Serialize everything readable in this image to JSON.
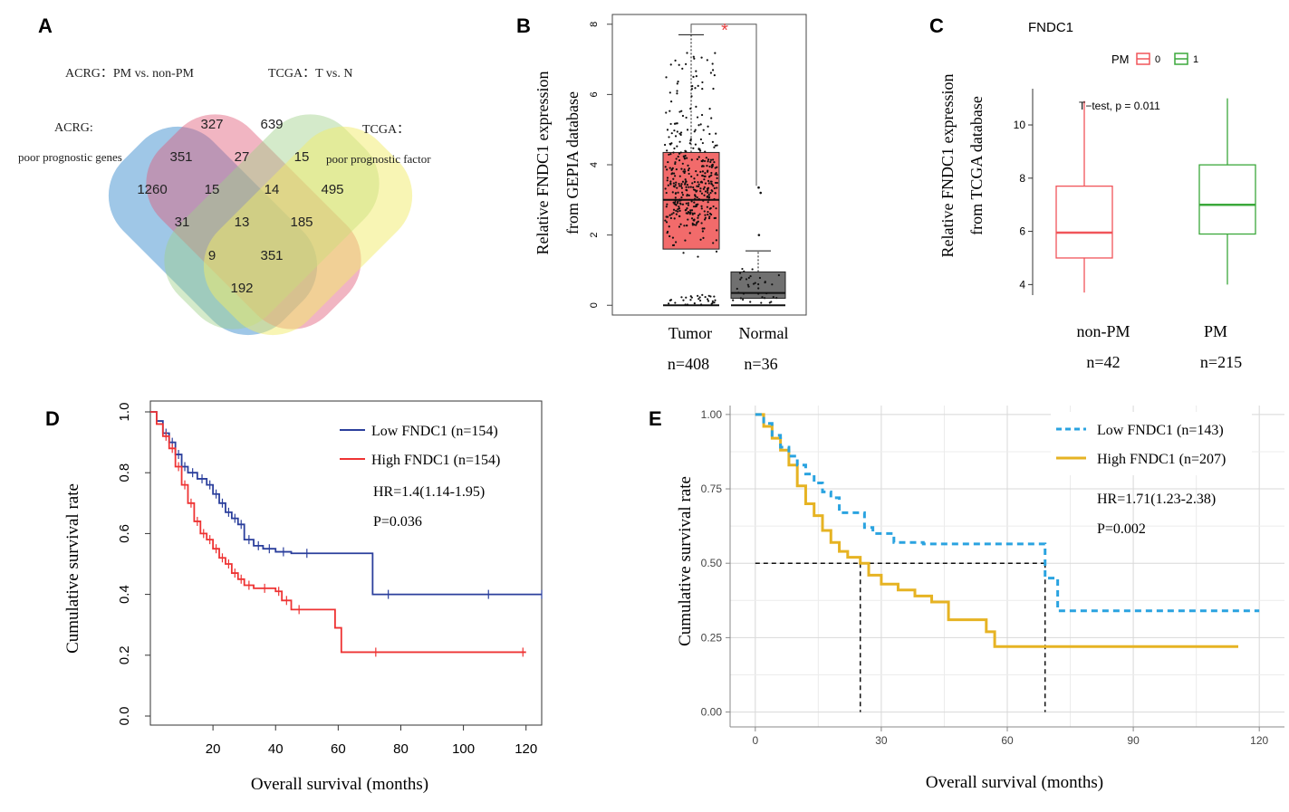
{
  "panel_labels": [
    "A",
    "B",
    "C",
    "D",
    "E"
  ],
  "colors": {
    "venn_blue": "#3f8fd0",
    "venn_red": "#e05a78",
    "venn_green": "#9fd08a",
    "venn_yellow": "#f2ec6a",
    "tumor_fill": "#f26b6b",
    "normal_fill": "#707070",
    "box_red": "#f0555a",
    "box_green": "#3ba83b",
    "km_blue": "#2b3f9c",
    "km_red": "#ee3333",
    "km_cyan": "#2aa3e0",
    "km_gold": "#e6b323",
    "star": "#e84040"
  },
  "chart_data": [
    {
      "panel": "A",
      "type": "venn",
      "set_labels": {
        "blue_line1": "ACRG:",
        "blue_line2": "poor prognostic genes",
        "red": "ACRG：PM vs. non-PM",
        "green": "TCGA：T vs. N",
        "yellow_line1": "TCGA：",
        "yellow_line2": "poor prognostic factor"
      },
      "region_counts": {
        "blue_only": "1260",
        "red_only": "327",
        "green_only": "639",
        "yellow_only": "495",
        "blue_red": "351",
        "red_green": "27",
        "green_yellow": "15",
        "blue_red_green": "15",
        "red_green_yellow": "14",
        "blue_green": "31",
        "all_four": "13",
        "red_yellow": "185",
        "blue_green_yellow": "9",
        "blue_red_yellow": "351",
        "blue_yellow": "192"
      }
    },
    {
      "panel": "B",
      "type": "box",
      "ylabel_line1": "Relative FNDC1 expression",
      "ylabel_line2": "from GEPIA database",
      "ylim": [
        -0.2,
        8.2
      ],
      "yticks": [
        "0",
        "2",
        "4",
        "6",
        "8"
      ],
      "groups": [
        {
          "name": "Tumor",
          "n": "n=408",
          "min": 0,
          "q1": 1.6,
          "median": 3.0,
          "q3": 4.35,
          "max": 7.7
        },
        {
          "name": "Normal",
          "n": "n=36",
          "min": 0,
          "q1": 0.2,
          "median": 0.35,
          "q3": 0.95,
          "max": 1.55
        }
      ],
      "normal_outliers": [
        2.0,
        3.2,
        3.35
      ],
      "significance": "*"
    },
    {
      "panel": "C",
      "type": "box",
      "title": "FNDC1",
      "legend_title": "PM",
      "legend_items": [
        "0",
        "1"
      ],
      "ylabel_line1": "Relative FNDC1 expression",
      "ylabel_line2": "from TCGA database",
      "ylim": [
        3.4,
        11.6
      ],
      "yticks": [
        "4",
        "6",
        "8",
        "10"
      ],
      "annotation": "T−test, p = 0.011",
      "groups": [
        {
          "name": "non-PM",
          "n": "n=42",
          "min": 3.7,
          "q1": 5.0,
          "median": 5.95,
          "q3": 7.7,
          "max": 10.9
        },
        {
          "name": "PM",
          "n": "n=215",
          "min": 4.0,
          "q1": 5.9,
          "median": 7.0,
          "q3": 8.5,
          "max": 11.0
        }
      ]
    },
    {
      "panel": "D",
      "type": "line",
      "subtype": "kaplan-meier",
      "xlabel": "Overall survival (months)",
      "ylabel": "Cumulative survival rate",
      "xlim": [
        0,
        125
      ],
      "ylim": [
        0,
        1
      ],
      "xticks": [
        "20",
        "40",
        "60",
        "80",
        "100",
        "120"
      ],
      "yticks": [
        "0.0",
        "0.2",
        "0.4",
        "0.6",
        "0.8",
        "1.0"
      ],
      "annotations": [
        "HR=1.4(1.14-1.95)",
        "P=0.036"
      ],
      "series": [
        {
          "name": "Low FNDC1 (n=154)",
          "points": [
            [
              0,
              1.0
            ],
            [
              2,
              0.97
            ],
            [
              4,
              0.93
            ],
            [
              6,
              0.9
            ],
            [
              8,
              0.86
            ],
            [
              10,
              0.82
            ],
            [
              12,
              0.8
            ],
            [
              15,
              0.78
            ],
            [
              18,
              0.76
            ],
            [
              20,
              0.73
            ],
            [
              22,
              0.7
            ],
            [
              24,
              0.67
            ],
            [
              26,
              0.65
            ],
            [
              28,
              0.63
            ],
            [
              30,
              0.58
            ],
            [
              33,
              0.56
            ],
            [
              36,
              0.55
            ],
            [
              40,
              0.54
            ],
            [
              45,
              0.535
            ],
            [
              55,
              0.535
            ],
            [
              71,
              0.535
            ],
            [
              71,
              0.4
            ],
            [
              125,
              0.4
            ]
          ],
          "censor": [
            76,
            108,
            125
          ]
        },
        {
          "name": "High FNDC1 (n=154)",
          "points": [
            [
              0,
              1.0
            ],
            [
              2,
              0.96
            ],
            [
              4,
              0.92
            ],
            [
              6,
              0.88
            ],
            [
              8,
              0.82
            ],
            [
              10,
              0.76
            ],
            [
              12,
              0.7
            ],
            [
              14,
              0.64
            ],
            [
              16,
              0.6
            ],
            [
              18,
              0.58
            ],
            [
              20,
              0.55
            ],
            [
              22,
              0.52
            ],
            [
              24,
              0.5
            ],
            [
              26,
              0.47
            ],
            [
              28,
              0.45
            ],
            [
              30,
              0.43
            ],
            [
              33,
              0.42
            ],
            [
              40,
              0.41
            ],
            [
              42,
              0.38
            ],
            [
              45,
              0.35
            ],
            [
              50,
              0.35
            ],
            [
              59,
              0.35
            ],
            [
              59,
              0.29
            ],
            [
              61,
              0.29
            ],
            [
              61,
              0.21
            ],
            [
              120,
              0.21
            ]
          ],
          "censor": [
            72,
            119
          ]
        }
      ]
    },
    {
      "panel": "E",
      "type": "line",
      "subtype": "kaplan-meier",
      "xlabel": "Overall survival (months)",
      "ylabel": "Cumulative survival rate",
      "xlim": [
        -6,
        126
      ],
      "ylim": [
        -0.05,
        1.03
      ],
      "xticks": [
        "0",
        "30",
        "60",
        "90",
        "120"
      ],
      "yticks": [
        "0.00",
        "0.25",
        "0.50",
        "0.75",
        "1.00"
      ],
      "annotations": [
        "HR=1.71(1.23-2.38)",
        "P=0.002"
      ],
      "median_lines": [
        25,
        69
      ],
      "series": [
        {
          "name": "Low FNDC1 (n=143)",
          "style": "dashed",
          "points": [
            [
              0,
              1.0
            ],
            [
              2,
              0.97
            ],
            [
              4,
              0.93
            ],
            [
              6,
              0.89
            ],
            [
              8,
              0.86
            ],
            [
              10,
              0.83
            ],
            [
              12,
              0.8
            ],
            [
              14,
              0.77
            ],
            [
              16,
              0.74
            ],
            [
              18,
              0.72
            ],
            [
              20,
              0.67
            ],
            [
              24,
              0.67
            ],
            [
              26,
              0.62
            ],
            [
              28,
              0.6
            ],
            [
              33,
              0.57
            ],
            [
              40,
              0.565
            ],
            [
              50,
              0.565
            ],
            [
              68,
              0.565
            ],
            [
              69,
              0.45
            ],
            [
              72,
              0.45
            ],
            [
              72,
              0.34
            ],
            [
              120,
              0.34
            ]
          ]
        },
        {
          "name": "High FNDC1 (n=207)",
          "style": "solid",
          "points": [
            [
              0,
              1.0
            ],
            [
              2,
              0.96
            ],
            [
              4,
              0.92
            ],
            [
              6,
              0.88
            ],
            [
              8,
              0.83
            ],
            [
              10,
              0.76
            ],
            [
              12,
              0.7
            ],
            [
              14,
              0.66
            ],
            [
              16,
              0.61
            ],
            [
              18,
              0.57
            ],
            [
              20,
              0.54
            ],
            [
              22,
              0.52
            ],
            [
              25,
              0.5
            ],
            [
              27,
              0.46
            ],
            [
              30,
              0.43
            ],
            [
              34,
              0.41
            ],
            [
              38,
              0.39
            ],
            [
              42,
              0.37
            ],
            [
              46,
              0.31
            ],
            [
              52,
              0.31
            ],
            [
              55,
              0.27
            ],
            [
              57,
              0.27
            ],
            [
              57,
              0.22
            ],
            [
              115,
              0.22
            ]
          ]
        }
      ]
    }
  ]
}
